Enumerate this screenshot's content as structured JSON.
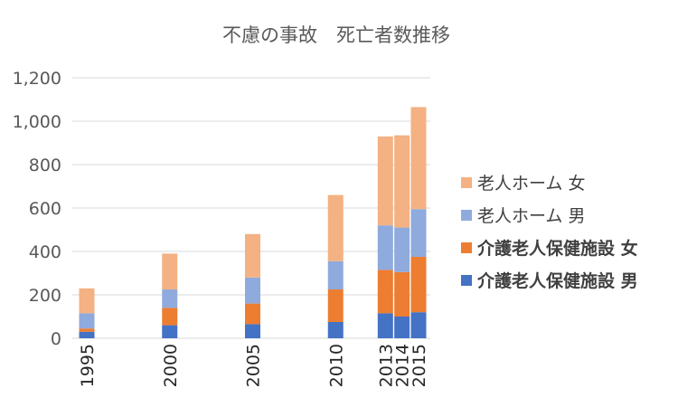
{
  "chart_data": {
    "type": "bar",
    "stacked": true,
    "title": "不慮の事故　死亡者数推移",
    "xlabel": "",
    "ylabel": "",
    "ylim": [
      0,
      1200
    ],
    "yticks": [
      "0",
      "200",
      "400",
      "600",
      "800",
      "1,000",
      "1,200"
    ],
    "grid": true,
    "legend_position": "right",
    "categories": [
      "1995",
      "2000",
      "2005",
      "2010",
      "2013",
      "2014",
      "2015"
    ],
    "series": [
      {
        "name": "介護老人保健施設 男",
        "color": "#4472C4",
        "values": [
          30,
          60,
          65,
          75,
          115,
          100,
          120
        ]
      },
      {
        "name": "介護老人保健施設 女",
        "color": "#ED7D31",
        "values": [
          15,
          80,
          95,
          150,
          200,
          205,
          255
        ]
      },
      {
        "name": "老人ホーム 男",
        "color": "#8FAADC",
        "values": [
          70,
          85,
          120,
          130,
          205,
          205,
          220
        ]
      },
      {
        "name": "老人ホーム 女",
        "color": "#F4B183",
        "values": [
          115,
          165,
          200,
          305,
          410,
          425,
          470
        ]
      }
    ]
  }
}
